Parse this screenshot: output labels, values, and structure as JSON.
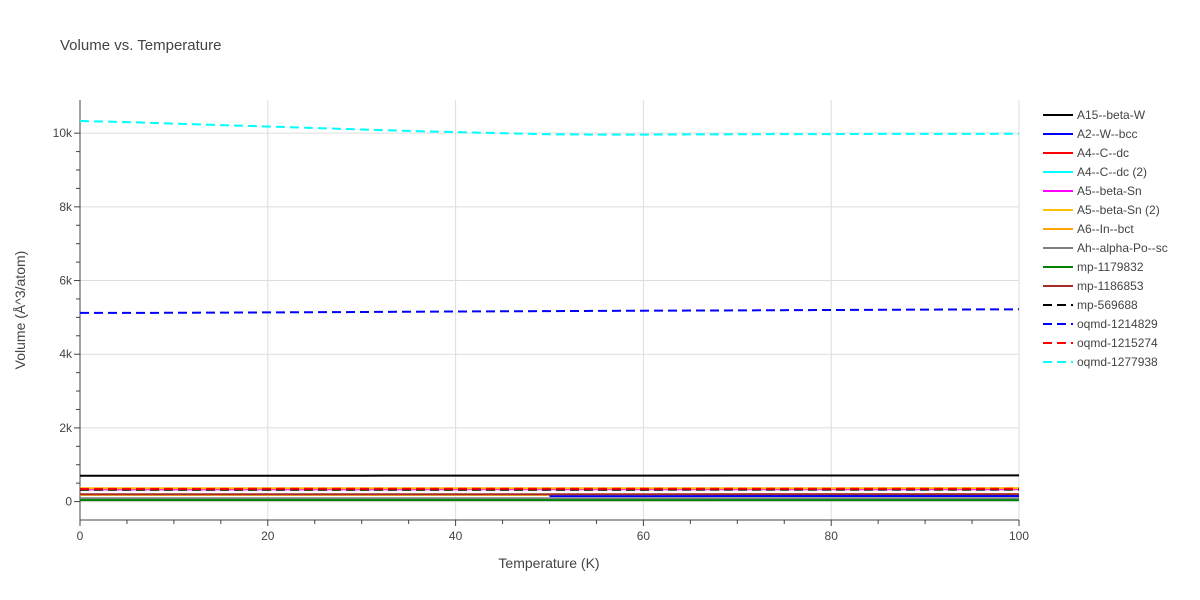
{
  "chart_data": {
    "type": "line",
    "title": "Volume vs. Temperature",
    "xlabel": "Temperature (K)",
    "ylabel": "Volume (Å^3/atom)",
    "xlim": [
      0,
      100
    ],
    "ylim": [
      -500,
      10900
    ],
    "x_ticks": [
      0,
      20,
      40,
      60,
      80,
      100
    ],
    "x_tick_labels": [
      "0",
      "20",
      "40",
      "60",
      "80",
      "100"
    ],
    "y_ticks": [
      0,
      2000,
      4000,
      6000,
      8000,
      10000
    ],
    "y_tick_labels": [
      "0",
      "2k",
      "4k",
      "6k",
      "8k",
      "10k"
    ],
    "grid": true,
    "legend_position": "right",
    "series": [
      {
        "name": "A15--beta-W",
        "color": "#000000",
        "dash": "solid",
        "x": [
          0,
          10,
          20,
          30,
          40,
          50,
          60,
          70,
          80,
          90,
          100
        ],
        "y": [
          700,
          701,
          702,
          703,
          704,
          705,
          706,
          707,
          708,
          709,
          710
        ]
      },
      {
        "name": "A2--W--bcc",
        "color": "#0000ff",
        "dash": "solid",
        "x": [
          50,
          60,
          70,
          80,
          90,
          100
        ],
        "y": [
          150,
          150,
          151,
          151,
          152,
          152
        ]
      },
      {
        "name": "A4--C--dc",
        "color": "#ff0000",
        "dash": "solid",
        "x": [
          0,
          20,
          40,
          60,
          80,
          100
        ],
        "y": [
          340,
          341,
          342,
          343,
          344,
          345
        ]
      },
      {
        "name": "A4--C--dc (2)",
        "color": "#00ffff",
        "dash": "solid",
        "x": [
          0,
          20,
          40,
          60,
          80,
          100
        ],
        "y": [
          60,
          60,
          61,
          61,
          62,
          62
        ]
      },
      {
        "name": "A5--beta-Sn",
        "color": "#ff00ff",
        "dash": "solid",
        "x": [
          0,
          20,
          40,
          60,
          80,
          100
        ],
        "y": [
          330,
          331,
          332,
          333,
          334,
          335
        ]
      },
      {
        "name": "A5--beta-Sn (2)",
        "color": "#ffc000",
        "dash": "solid",
        "x": [
          0,
          20,
          40,
          60,
          80,
          100
        ],
        "y": [
          360,
          361,
          362,
          363,
          364,
          365
        ]
      },
      {
        "name": "A6--In--bct",
        "color": "#ffa500",
        "dash": "solid",
        "x": [
          0,
          10,
          20,
          30,
          40,
          50
        ],
        "y": [
          180,
          180,
          181,
          181,
          182,
          182
        ]
      },
      {
        "name": "Ah--alpha-Po--sc",
        "color": "#808080",
        "dash": "solid",
        "x": [
          0,
          20,
          40,
          60,
          80,
          100
        ],
        "y": [
          90,
          90,
          91,
          91,
          92,
          92
        ]
      },
      {
        "name": "mp-1179832",
        "color": "#008000",
        "dash": "solid",
        "x": [
          0,
          20,
          40,
          60,
          80,
          100
        ],
        "y": [
          40,
          40,
          40,
          41,
          41,
          41
        ]
      },
      {
        "name": "mp-1186853",
        "color": "#a52a2a",
        "dash": "solid",
        "x": [
          0,
          20,
          40,
          60,
          80,
          100
        ],
        "y": [
          200,
          200,
          201,
          201,
          202,
          202
        ]
      },
      {
        "name": "mp-569688",
        "color": "#000000",
        "dash": "dash",
        "x": [
          0,
          20,
          40,
          60,
          80,
          100
        ],
        "y": [
          320,
          321,
          322,
          323,
          324,
          325
        ]
      },
      {
        "name": "oqmd-1214829",
        "color": "#0000ff",
        "dash": "dash",
        "x": [
          0,
          10,
          20,
          30,
          40,
          50,
          60,
          70,
          80,
          90,
          100
        ],
        "y": [
          5120,
          5125,
          5135,
          5145,
          5160,
          5170,
          5180,
          5190,
          5200,
          5210,
          5220
        ]
      },
      {
        "name": "oqmd-1215274",
        "color": "#ff0000",
        "dash": "dash",
        "x": [
          0,
          20,
          40,
          60,
          80,
          100
        ],
        "y": [
          345,
          346,
          347,
          348,
          349,
          350
        ]
      },
      {
        "name": "oqmd-1277938",
        "color": "#00ffff",
        "dash": "dash",
        "x": [
          0,
          5,
          10,
          15,
          20,
          25,
          30,
          35,
          40,
          45,
          50,
          55,
          60,
          65,
          70,
          75,
          80,
          85,
          90,
          95,
          100
        ],
        "y": [
          10330,
          10300,
          10260,
          10220,
          10180,
          10140,
          10100,
          10060,
          10030,
          10000,
          9970,
          9960,
          9960,
          9965,
          9970,
          9975,
          9975,
          9980,
          9980,
          9980,
          9985
        ]
      }
    ]
  }
}
